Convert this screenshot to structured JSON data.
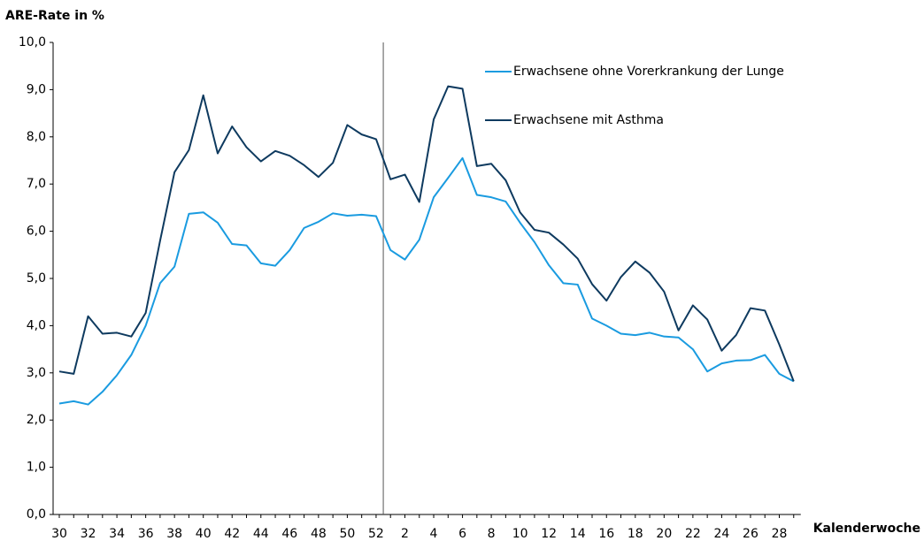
{
  "chart_data": {
    "type": "line",
    "y_label": "ARE-Rate in %",
    "x_label": "Kalenderwoche",
    "categories": [
      30,
      null,
      32,
      null,
      34,
      null,
      36,
      null,
      38,
      null,
      40,
      null,
      42,
      null,
      44,
      null,
      46,
      null,
      48,
      null,
      50,
      null,
      52,
      null,
      2,
      null,
      4,
      null,
      6,
      null,
      8,
      null,
      10,
      null,
      12,
      null,
      14,
      null,
      16,
      null,
      18,
      null,
      20,
      null,
      22,
      null,
      24,
      null,
      26,
      null,
      28,
      null
    ],
    "series": [
      {
        "name": "Erwachsene ohne Vorerkrankung der Lunge",
        "color": "#1a9be0",
        "values": [
          2.35,
          2.4,
          2.33,
          2.6,
          2.95,
          3.38,
          4.0,
          4.9,
          5.25,
          6.37,
          6.4,
          6.18,
          5.73,
          5.7,
          5.32,
          5.27,
          5.6,
          6.07,
          6.2,
          6.38,
          6.33,
          6.35,
          6.32,
          5.6,
          5.4,
          5.82,
          6.72,
          7.13,
          7.55,
          6.77,
          6.72,
          6.63,
          6.18,
          5.77,
          5.28,
          4.9,
          4.87,
          4.15,
          4.0,
          3.83,
          3.8,
          3.85,
          3.77,
          3.75,
          3.5,
          3.03,
          3.2,
          3.26,
          3.27,
          3.38,
          2.98,
          2.82
        ]
      },
      {
        "name": "Erwachsene mit Asthma",
        "color": "#0e3a5f",
        "values": [
          3.03,
          2.98,
          4.2,
          3.83,
          3.85,
          3.77,
          4.27,
          5.8,
          7.25,
          7.72,
          8.88,
          7.65,
          8.22,
          7.78,
          7.48,
          7.7,
          7.6,
          7.4,
          7.15,
          7.45,
          8.25,
          8.05,
          7.95,
          7.1,
          7.2,
          6.62,
          8.37,
          9.07,
          9.02,
          7.38,
          7.43,
          7.08,
          6.4,
          6.03,
          5.97,
          5.72,
          5.42,
          4.88,
          4.53,
          5.03,
          5.36,
          5.12,
          4.72,
          3.9,
          4.43,
          4.13,
          3.47,
          3.8,
          4.37,
          4.32,
          3.6,
          2.82
        ]
      }
    ],
    "ylim": [
      0,
      10
    ],
    "yticks": [
      {
        "value": 0,
        "label": "0,0"
      },
      {
        "value": 1,
        "label": "1,0"
      },
      {
        "value": 2,
        "label": "2,0"
      },
      {
        "value": 3,
        "label": "3,0"
      },
      {
        "value": 4,
        "label": "4,0"
      },
      {
        "value": 5,
        "label": "5,0"
      },
      {
        "value": 6,
        "label": "6,0"
      },
      {
        "value": 7,
        "label": "7,0"
      },
      {
        "value": 8,
        "label": "8,0"
      },
      {
        "value": 9,
        "label": "9,0"
      },
      {
        "value": 10,
        "label": "10,0"
      }
    ],
    "grid": false
  }
}
